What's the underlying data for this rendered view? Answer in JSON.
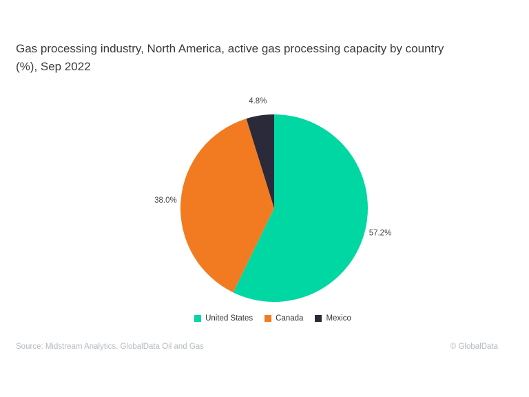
{
  "title": {
    "line1": "Gas processing industry, North America, active gas processing capacity by country",
    "line2": "(%), Sep 2022"
  },
  "chart_data": {
    "type": "pie",
    "title": "Gas processing industry, North America, active gas processing capacity by country (%), Sep 2022",
    "unit": "%",
    "slices": [
      {
        "label": "United States",
        "value": 57.2,
        "color": "#00D7A3"
      },
      {
        "label": "Canada",
        "value": 38.0,
        "color": "#F27B21"
      },
      {
        "label": "Mexico",
        "value": 4.8,
        "color": "#2A2A3A"
      }
    ],
    "legend_position": "bottom",
    "start_angle_deg": 0,
    "direction": "clockwise",
    "label_style": "outside-percent",
    "label_color": "#454545"
  },
  "footer": {
    "source": "Source: Midstream Analytics, GlobalData Oil and Gas",
    "copyright": "© GlobalData"
  }
}
